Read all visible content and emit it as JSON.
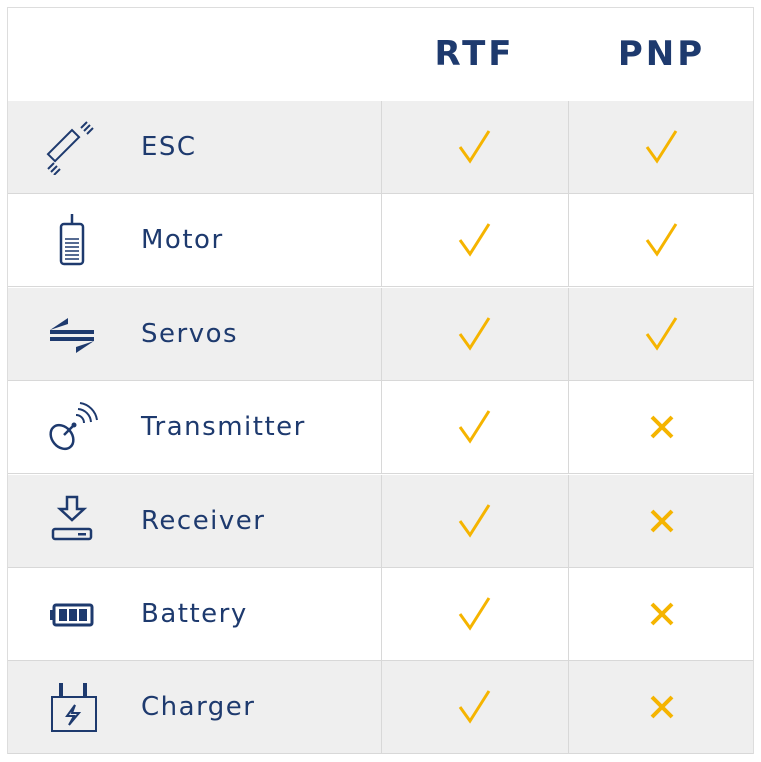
{
  "header": {
    "columns": [
      "RTF",
      "PNP"
    ]
  },
  "colors": {
    "navy": "#1e3a6e",
    "mark": "#f5b400",
    "row_alt": "#efefef"
  },
  "rows": [
    {
      "label": "ESC",
      "icon": "esc-icon",
      "rtf": true,
      "pnp": true
    },
    {
      "label": "Motor",
      "icon": "motor-icon",
      "rtf": true,
      "pnp": true
    },
    {
      "label": "Servos",
      "icon": "servos-icon",
      "rtf": true,
      "pnp": true
    },
    {
      "label": "Transmitter",
      "icon": "transmitter-icon",
      "rtf": true,
      "pnp": false
    },
    {
      "label": "Receiver",
      "icon": "receiver-icon",
      "rtf": true,
      "pnp": false
    },
    {
      "label": "Battery",
      "icon": "battery-icon",
      "rtf": true,
      "pnp": false
    },
    {
      "label": "Charger",
      "icon": "charger-icon",
      "rtf": true,
      "pnp": false
    }
  ]
}
